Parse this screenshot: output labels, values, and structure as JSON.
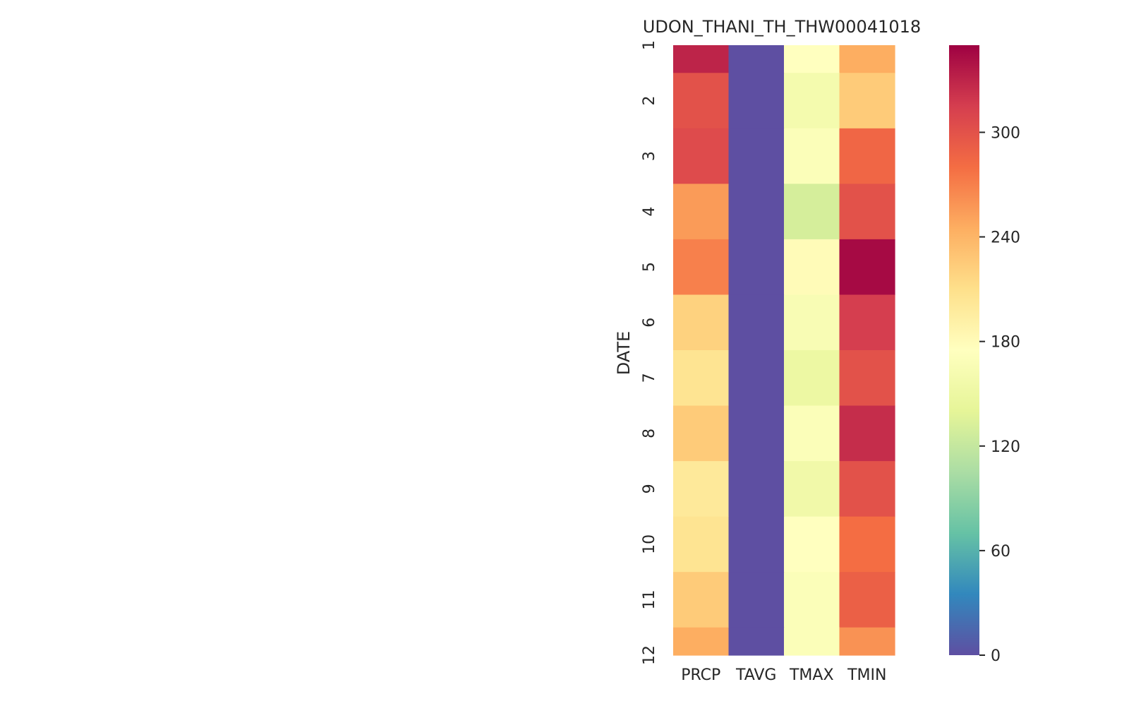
{
  "chart_data": {
    "type": "heatmap",
    "title": "UDON_THANI_TH_THW00041018",
    "xlabel": "",
    "ylabel": "DATE",
    "columns": [
      "PRCP",
      "TAVG",
      "TMAX",
      "TMIN"
    ],
    "rows": [
      "1",
      "2",
      "3",
      "4",
      "5",
      "6",
      "7",
      "8",
      "9",
      "10",
      "11",
      "12"
    ],
    "row_weights": [
      0.5,
      1,
      1,
      1,
      1,
      1,
      1,
      1,
      1,
      1,
      1,
      0.5
    ],
    "values": [
      [
        330,
        0,
        175,
        245
      ],
      [
        300,
        0,
        160,
        225
      ],
      [
        305,
        0,
        170,
        285
      ],
      [
        255,
        0,
        130,
        300
      ],
      [
        270,
        0,
        180,
        345
      ],
      [
        220,
        0,
        165,
        315
      ],
      [
        205,
        0,
        150,
        300
      ],
      [
        225,
        0,
        170,
        325
      ],
      [
        200,
        0,
        155,
        300
      ],
      [
        205,
        0,
        175,
        280
      ],
      [
        225,
        0,
        170,
        290
      ],
      [
        245,
        0,
        170,
        260
      ]
    ],
    "colorbar": {
      "colormap": "Spectral_r",
      "vmin": 0,
      "vmax": 350,
      "ticks": [
        0,
        60,
        120,
        180,
        240,
        300
      ]
    },
    "grid": false,
    "legend": "colorbar-right"
  }
}
